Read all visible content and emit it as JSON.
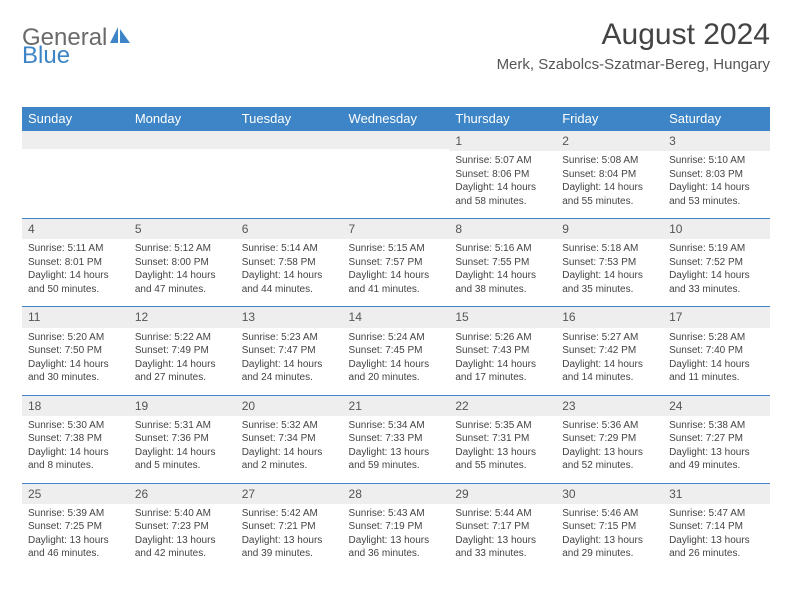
{
  "brand": {
    "word1": "General",
    "word2": "Blue"
  },
  "title": "August 2024",
  "subtitle": "Merk, Szabolcs-Szatmar-Bereg, Hungary",
  "colors": {
    "accent": "#3d85c6",
    "daynum_bg": "#eeeeee",
    "text": "#444444",
    "background": "#ffffff"
  },
  "calendar": {
    "day_headers": [
      "Sunday",
      "Monday",
      "Tuesday",
      "Wednesday",
      "Thursday",
      "Friday",
      "Saturday"
    ],
    "first_weekday_index": 4,
    "days_in_month": 31,
    "days": {
      "1": {
        "sunrise": "5:07 AM",
        "sunset": "8:06 PM",
        "daylight": "14 hours and 58 minutes."
      },
      "2": {
        "sunrise": "5:08 AM",
        "sunset": "8:04 PM",
        "daylight": "14 hours and 55 minutes."
      },
      "3": {
        "sunrise": "5:10 AM",
        "sunset": "8:03 PM",
        "daylight": "14 hours and 53 minutes."
      },
      "4": {
        "sunrise": "5:11 AM",
        "sunset": "8:01 PM",
        "daylight": "14 hours and 50 minutes."
      },
      "5": {
        "sunrise": "5:12 AM",
        "sunset": "8:00 PM",
        "daylight": "14 hours and 47 minutes."
      },
      "6": {
        "sunrise": "5:14 AM",
        "sunset": "7:58 PM",
        "daylight": "14 hours and 44 minutes."
      },
      "7": {
        "sunrise": "5:15 AM",
        "sunset": "7:57 PM",
        "daylight": "14 hours and 41 minutes."
      },
      "8": {
        "sunrise": "5:16 AM",
        "sunset": "7:55 PM",
        "daylight": "14 hours and 38 minutes."
      },
      "9": {
        "sunrise": "5:18 AM",
        "sunset": "7:53 PM",
        "daylight": "14 hours and 35 minutes."
      },
      "10": {
        "sunrise": "5:19 AM",
        "sunset": "7:52 PM",
        "daylight": "14 hours and 33 minutes."
      },
      "11": {
        "sunrise": "5:20 AM",
        "sunset": "7:50 PM",
        "daylight": "14 hours and 30 minutes."
      },
      "12": {
        "sunrise": "5:22 AM",
        "sunset": "7:49 PM",
        "daylight": "14 hours and 27 minutes."
      },
      "13": {
        "sunrise": "5:23 AM",
        "sunset": "7:47 PM",
        "daylight": "14 hours and 24 minutes."
      },
      "14": {
        "sunrise": "5:24 AM",
        "sunset": "7:45 PM",
        "daylight": "14 hours and 20 minutes."
      },
      "15": {
        "sunrise": "5:26 AM",
        "sunset": "7:43 PM",
        "daylight": "14 hours and 17 minutes."
      },
      "16": {
        "sunrise": "5:27 AM",
        "sunset": "7:42 PM",
        "daylight": "14 hours and 14 minutes."
      },
      "17": {
        "sunrise": "5:28 AM",
        "sunset": "7:40 PM",
        "daylight": "14 hours and 11 minutes."
      },
      "18": {
        "sunrise": "5:30 AM",
        "sunset": "7:38 PM",
        "daylight": "14 hours and 8 minutes."
      },
      "19": {
        "sunrise": "5:31 AM",
        "sunset": "7:36 PM",
        "daylight": "14 hours and 5 minutes."
      },
      "20": {
        "sunrise": "5:32 AM",
        "sunset": "7:34 PM",
        "daylight": "14 hours and 2 minutes."
      },
      "21": {
        "sunrise": "5:34 AM",
        "sunset": "7:33 PM",
        "daylight": "13 hours and 59 minutes."
      },
      "22": {
        "sunrise": "5:35 AM",
        "sunset": "7:31 PM",
        "daylight": "13 hours and 55 minutes."
      },
      "23": {
        "sunrise": "5:36 AM",
        "sunset": "7:29 PM",
        "daylight": "13 hours and 52 minutes."
      },
      "24": {
        "sunrise": "5:38 AM",
        "sunset": "7:27 PM",
        "daylight": "13 hours and 49 minutes."
      },
      "25": {
        "sunrise": "5:39 AM",
        "sunset": "7:25 PM",
        "daylight": "13 hours and 46 minutes."
      },
      "26": {
        "sunrise": "5:40 AM",
        "sunset": "7:23 PM",
        "daylight": "13 hours and 42 minutes."
      },
      "27": {
        "sunrise": "5:42 AM",
        "sunset": "7:21 PM",
        "daylight": "13 hours and 39 minutes."
      },
      "28": {
        "sunrise": "5:43 AM",
        "sunset": "7:19 PM",
        "daylight": "13 hours and 36 minutes."
      },
      "29": {
        "sunrise": "5:44 AM",
        "sunset": "7:17 PM",
        "daylight": "13 hours and 33 minutes."
      },
      "30": {
        "sunrise": "5:46 AM",
        "sunset": "7:15 PM",
        "daylight": "13 hours and 29 minutes."
      },
      "31": {
        "sunrise": "5:47 AM",
        "sunset": "7:14 PM",
        "daylight": "13 hours and 26 minutes."
      }
    },
    "labels": {
      "sunrise_prefix": "Sunrise: ",
      "sunset_prefix": "Sunset: ",
      "daylight_prefix": "Daylight: "
    }
  }
}
